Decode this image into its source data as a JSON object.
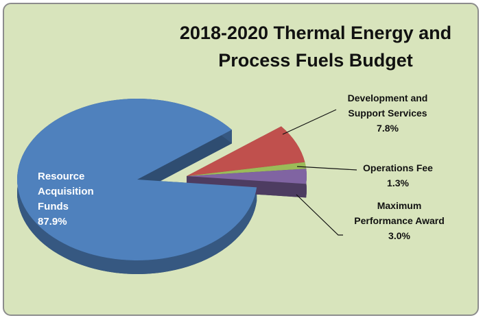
{
  "chart_data": {
    "type": "pie",
    "title": "2018-2020 Thermal Energy and Process Fuels Budget",
    "categories": [
      "Resource Acquisition Funds",
      "Development and Support Services",
      "Operations Fee",
      "Maximum Performance Award"
    ],
    "values": [
      87.9,
      7.8,
      1.3,
      3.0
    ],
    "value_labels": [
      "87.9%",
      "7.8%",
      "1.3%",
      "3.0%"
    ],
    "colors": [
      "#4f81bd",
      "#c0504d",
      "#9bbb59",
      "#8064a2"
    ]
  }
}
